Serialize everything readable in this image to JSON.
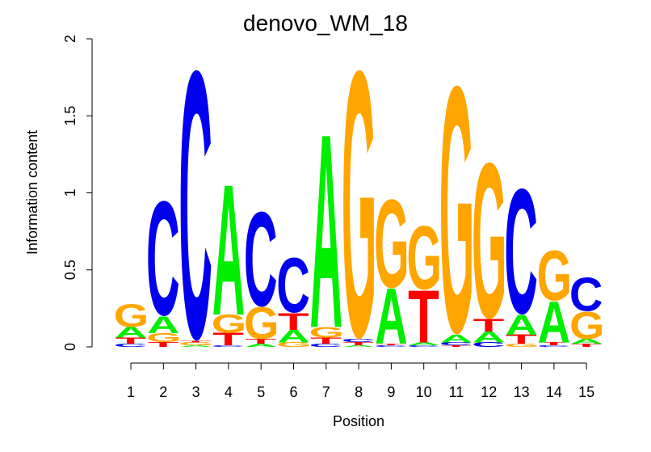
{
  "chart_data": {
    "type": "sequence-logo",
    "title": "denovo_WM_18",
    "xlabel": "Position",
    "ylabel": "Information content",
    "ylim": [
      0,
      2
    ],
    "yticks": [
      "0",
      "0.5",
      "1",
      "1.5",
      "2"
    ],
    "positions": [
      "1",
      "2",
      "3",
      "4",
      "5",
      "6",
      "7",
      "8",
      "9",
      "10",
      "11",
      "12",
      "13",
      "14",
      "15"
    ],
    "colors": {
      "A": "#00EE00",
      "C": "#0000EE",
      "G": "#FFA500",
      "T": "#FF0000"
    },
    "columns": [
      [
        [
          "C",
          0.02
        ],
        [
          "T",
          0.04
        ],
        [
          "A",
          0.07
        ],
        [
          "G",
          0.15
        ]
      ],
      [
        [
          "T",
          0.03
        ],
        [
          "G",
          0.06
        ],
        [
          "A",
          0.11
        ],
        [
          "C",
          0.75
        ]
      ],
      [
        [
          "A",
          0.01
        ],
        [
          "G",
          0.02
        ],
        [
          "T",
          0.01
        ],
        [
          "C",
          1.76
        ]
      ],
      [
        [
          "C",
          0.01
        ],
        [
          "T",
          0.08
        ],
        [
          "G",
          0.12
        ],
        [
          "A",
          0.85
        ]
      ],
      [
        [
          "A",
          0.02
        ],
        [
          "T",
          0.03
        ],
        [
          "G",
          0.21
        ],
        [
          "C",
          0.62
        ]
      ],
      [
        [
          "G",
          0.03
        ],
        [
          "A",
          0.08
        ],
        [
          "T",
          0.11
        ],
        [
          "C",
          0.36
        ]
      ],
      [
        [
          "C",
          0.02
        ],
        [
          "T",
          0.04
        ],
        [
          "G",
          0.07
        ],
        [
          "A",
          1.26
        ]
      ],
      [
        [
          "A",
          0.01
        ],
        [
          "T",
          0.02
        ],
        [
          "C",
          0.02
        ],
        [
          "G",
          1.75
        ]
      ],
      [
        [
          "C",
          0.01
        ],
        [
          "T",
          0.01
        ],
        [
          "A",
          0.36
        ],
        [
          "G",
          0.58
        ]
      ],
      [
        [
          "C",
          0.01
        ],
        [
          "A",
          0.02
        ],
        [
          "T",
          0.34
        ],
        [
          "G",
          0.42
        ]
      ],
      [
        [
          "T",
          0.01
        ],
        [
          "C",
          0.02
        ],
        [
          "A",
          0.05
        ],
        [
          "G",
          1.62
        ]
      ],
      [
        [
          "C",
          0.03
        ],
        [
          "A",
          0.07
        ],
        [
          "T",
          0.08
        ],
        [
          "G",
          1.02
        ]
      ],
      [
        [
          "G",
          0.02
        ],
        [
          "T",
          0.06
        ],
        [
          "A",
          0.13
        ],
        [
          "C",
          0.82
        ]
      ],
      [
        [
          "C",
          0.01
        ],
        [
          "T",
          0.02
        ],
        [
          "A",
          0.27
        ],
        [
          "G",
          0.33
        ]
      ],
      [
        [
          "T",
          0.02
        ],
        [
          "A",
          0.03
        ],
        [
          "G",
          0.18
        ],
        [
          "C",
          0.22
        ]
      ]
    ]
  }
}
